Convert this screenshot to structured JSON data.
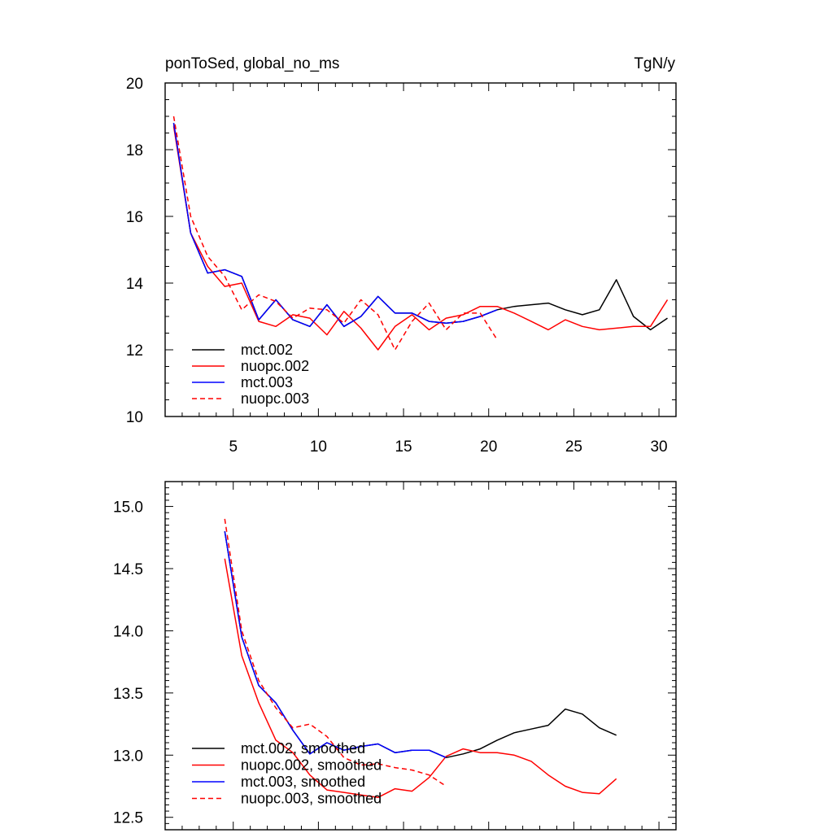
{
  "chart_data": [
    {
      "type": "line",
      "title": "ponToSed, global_no_ms",
      "units": "TgN/y",
      "xlim": [
        1,
        31
      ],
      "ylim": [
        10,
        20
      ],
      "xticks": [
        5,
        10,
        15,
        20,
        25,
        30
      ],
      "yticks": [
        10,
        12,
        14,
        16,
        18,
        20
      ],
      "legend_position": "bottom-left",
      "series": [
        {
          "name": "mct.002",
          "color": "#000000",
          "dash": "solid",
          "x": [
            1.5,
            2.5,
            3.5,
            4.5,
            5.5,
            6.5,
            7.5,
            8.5,
            9.5,
            10.5,
            11.5,
            12.5,
            13.5,
            14.5,
            15.5,
            16.5,
            17.5,
            18.5,
            19.5,
            20.5,
            21.5,
            22.5,
            23.5,
            24.5,
            25.5,
            26.5,
            27.5,
            28.5,
            29.5,
            30.5
          ],
          "values": [
            18.8,
            15.5,
            14.3,
            14.4,
            14.2,
            12.9,
            13.5,
            12.9,
            12.7,
            13.35,
            12.7,
            13.0,
            13.6,
            13.1,
            13.1,
            12.85,
            12.8,
            12.85,
            13.0,
            13.2,
            13.3,
            13.35,
            13.4,
            13.2,
            13.05,
            13.2,
            14.1,
            13.0,
            12.6,
            12.95
          ]
        },
        {
          "name": "nuopc.002",
          "color": "#ff0000",
          "dash": "solid",
          "x": [
            1.5,
            2.5,
            3.5,
            4.5,
            5.5,
            6.5,
            7.5,
            8.5,
            9.5,
            10.5,
            11.5,
            12.5,
            13.5,
            14.5,
            15.5,
            16.5,
            17.5,
            18.5,
            19.5,
            20.5,
            21.5,
            22.5,
            23.5,
            24.5,
            25.5,
            26.5,
            27.5,
            28.5,
            29.5,
            30.5
          ],
          "values": [
            18.7,
            15.5,
            14.5,
            13.9,
            14.0,
            12.85,
            12.7,
            13.05,
            12.95,
            12.45,
            13.15,
            12.65,
            12.0,
            12.7,
            13.05,
            12.6,
            12.95,
            13.05,
            13.3,
            13.3,
            13.1,
            12.85,
            12.6,
            12.9,
            12.7,
            12.6,
            12.65,
            12.7,
            12.7,
            13.5
          ]
        },
        {
          "name": "mct.003",
          "color": "#0000ff",
          "dash": "solid",
          "x": [
            1.5,
            2.5,
            3.5,
            4.5,
            5.5,
            6.5,
            7.5,
            8.5,
            9.5,
            10.5,
            11.5,
            12.5,
            13.5,
            14.5,
            15.5,
            16.5,
            17.5,
            18.5,
            19.5,
            20.5
          ],
          "values": [
            18.8,
            15.5,
            14.3,
            14.4,
            14.2,
            12.9,
            13.5,
            12.9,
            12.7,
            13.35,
            12.7,
            13.0,
            13.6,
            13.1,
            13.1,
            12.85,
            12.8,
            12.85,
            13.0,
            13.2
          ]
        },
        {
          "name": "nuopc.003",
          "color": "#ff0000",
          "dash": "dashed",
          "x": [
            1.5,
            2.5,
            3.5,
            4.5,
            5.5,
            6.5,
            7.5,
            8.5,
            9.5,
            10.5,
            11.5,
            12.5,
            13.5,
            14.5,
            15.5,
            16.5,
            17.5,
            18.5,
            19.5,
            20.5
          ],
          "values": [
            19.0,
            16.0,
            14.8,
            14.2,
            13.2,
            13.65,
            13.45,
            12.95,
            13.25,
            13.2,
            12.8,
            13.5,
            13.05,
            12.0,
            12.85,
            13.4,
            12.6,
            13.1,
            13.1,
            12.3
          ]
        }
      ]
    },
    {
      "type": "line",
      "title": "",
      "xlim": [
        1,
        31
      ],
      "ylim": [
        12.4,
        15.2
      ],
      "xticks": [
        5,
        10,
        15,
        20,
        25,
        30
      ],
      "yticks": [
        12.5,
        13.0,
        13.5,
        14.0,
        14.5,
        15.0
      ],
      "ytick_labels": [
        "12.5",
        "13.0",
        "13.5",
        "14.0",
        "14.5",
        "15.0"
      ],
      "legend_position": "bottom-left",
      "series": [
        {
          "name": "mct.002, smoothed",
          "color": "#000000",
          "dash": "solid",
          "x": [
            4.5,
            5.5,
            6.5,
            7.5,
            8.5,
            9.5,
            10.5,
            11.5,
            12.5,
            13.5,
            14.5,
            15.5,
            16.5,
            17.5,
            18.5,
            19.5,
            20.5,
            21.5,
            22.5,
            23.5,
            24.5,
            25.5,
            26.5,
            27.5
          ],
          "values": [
            14.8,
            13.95,
            13.56,
            13.42,
            13.2,
            13.01,
            13.1,
            13.04,
            13.07,
            13.09,
            13.02,
            13.04,
            13.04,
            12.98,
            13.01,
            13.05,
            13.12,
            13.18,
            13.21,
            13.24,
            13.37,
            13.33,
            13.22,
            13.16
          ]
        },
        {
          "name": "nuopc.002, smoothed",
          "color": "#ff0000",
          "dash": "solid",
          "x": [
            4.5,
            5.5,
            6.5,
            7.5,
            8.5,
            9.5,
            10.5,
            11.5,
            12.5,
            13.5,
            14.5,
            15.5,
            16.5,
            17.5,
            18.5,
            19.5,
            20.5,
            21.5,
            22.5,
            23.5,
            24.5,
            25.5,
            26.5,
            27.5
          ],
          "values": [
            14.58,
            13.8,
            13.42,
            13.12,
            13.02,
            12.84,
            12.72,
            12.7,
            12.68,
            12.66,
            12.73,
            12.71,
            12.82,
            12.99,
            13.05,
            13.02,
            13.02,
            13.0,
            12.95,
            12.84,
            12.75,
            12.7,
            12.69,
            12.81
          ]
        },
        {
          "name": "mct.003, smoothed",
          "color": "#0000ff",
          "dash": "solid",
          "x": [
            4.5,
            5.5,
            6.5,
            7.5,
            8.5,
            9.5,
            10.5,
            11.5,
            12.5,
            13.5,
            14.5,
            15.5,
            16.5,
            17.5
          ],
          "values": [
            14.8,
            13.95,
            13.56,
            13.42,
            13.2,
            13.01,
            13.1,
            13.04,
            13.07,
            13.09,
            13.02,
            13.04,
            13.04,
            12.98
          ]
        },
        {
          "name": "nuopc.003, smoothed",
          "color": "#ff0000",
          "dash": "dashed",
          "x": [
            4.5,
            5.5,
            6.5,
            7.5,
            8.5,
            9.5,
            10.5,
            11.5,
            12.5,
            13.5,
            14.5,
            15.5,
            16.5,
            17.5
          ],
          "values": [
            14.9,
            14.0,
            13.6,
            13.38,
            13.22,
            13.25,
            13.15,
            12.98,
            12.92,
            12.93,
            12.9,
            12.88,
            12.84,
            12.75
          ]
        }
      ]
    }
  ]
}
